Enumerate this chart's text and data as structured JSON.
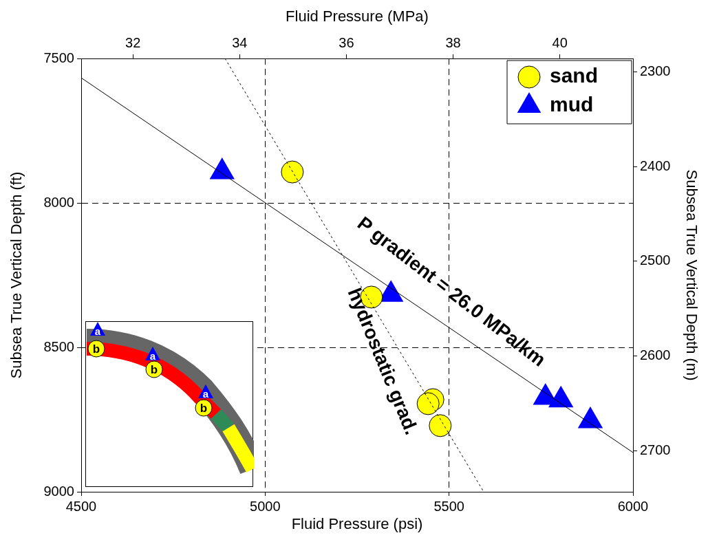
{
  "chart_data": {
    "type": "scatter",
    "xlabel": "Fluid Pressure (psi)",
    "ylabel": "Subsea True Vertical Depth (ft)",
    "x2label": "Fluid Pressure (MPa)",
    "y2label": "Subsea True Vertical Depth (m)",
    "xlim": [
      4500,
      6000
    ],
    "xticks": [
      4500,
      5000,
      5500,
      6000
    ],
    "ylim": [
      9000,
      7500
    ],
    "yticks": [
      7500,
      8000,
      8500,
      9000
    ],
    "x2lim": [
      31.03,
      41.37
    ],
    "x2ticks": [
      32,
      34,
      36,
      38,
      40
    ],
    "y2lim": [
      2743.2,
      2286
    ],
    "y2ticks": [
      2300,
      2400,
      2500,
      2600,
      2700
    ],
    "grid": true,
    "legend": "top right",
    "series": [
      {
        "type": "line",
        "color": "#000000",
        "marker": "none",
        "line_style": "solid",
        "x": [
          4500,
          6000
        ],
        "values": [
          7567,
          8864
        ]
      },
      {
        "type": "line",
        "color": "#000000",
        "marker": "none",
        "line_style": "dotted",
        "x": [
          4891,
          5594
        ],
        "values": [
          7500,
          9000
        ]
      },
      {
        "name": "sand",
        "color": "#ffff00",
        "marker": "circle",
        "x": [
          5074,
          5289,
          5456,
          5443,
          5476
        ],
        "values": [
          7893,
          8326,
          8681,
          8695,
          8771
        ]
      },
      {
        "name": "mud",
        "color": "#0000ff",
        "marker": "triangle",
        "x": [
          4883,
          5342,
          5762,
          5804,
          5884
        ],
        "values": [
          7893,
          8317,
          8674,
          8683,
          8755
        ]
      }
    ],
    "annotations": [
      "P gradient = 26.0 MPa/km",
      "hydrostatic grad.",
      "a",
      "b"
    ]
  }
}
